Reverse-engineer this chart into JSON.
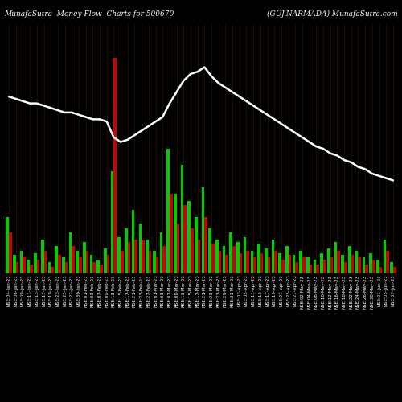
{
  "title_left": "MunafaSutra  Money Flow  Charts for 500670",
  "title_right": "(GUJ.NARMADA) MunafaSutra.com",
  "background_color": "#000000",
  "n_bars": 56,
  "xlabel_fontsize": 4.0,
  "title_fontsize": 6.5,
  "line_color": "#ffffff",
  "green_heights": [
    2.5,
    0.8,
    1.0,
    0.6,
    0.9,
    1.5,
    0.5,
    1.2,
    0.7,
    1.8,
    1.0,
    1.4,
    0.8,
    0.6,
    1.1,
    4.5,
    1.6,
    2.0,
    2.8,
    2.2,
    1.5,
    1.0,
    1.8,
    5.5,
    3.5,
    4.8,
    3.2,
    2.5,
    3.8,
    2.0,
    1.5,
    1.2,
    1.8,
    1.4,
    1.6,
    1.0,
    1.3,
    1.1,
    1.5,
    0.9,
    1.2,
    0.8,
    1.0,
    0.7,
    0.6,
    0.9,
    1.1,
    1.4,
    0.8,
    1.2,
    1.0,
    0.7,
    0.9,
    0.6,
    1.5,
    0.5
  ],
  "red_heights": [
    1.8,
    0.5,
    0.7,
    0.4,
    0.6,
    1.0,
    0.3,
    0.8,
    0.5,
    1.2,
    0.7,
    1.0,
    0.5,
    0.4,
    0.8,
    9.5,
    1.0,
    1.4,
    1.5,
    1.5,
    1.0,
    0.7,
    1.2,
    3.5,
    2.2,
    3.0,
    2.0,
    1.5,
    2.5,
    1.3,
    1.0,
    0.8,
    1.2,
    0.9,
    1.0,
    0.7,
    0.9,
    0.7,
    1.0,
    0.6,
    0.8,
    0.5,
    0.7,
    0.4,
    0.4,
    0.6,
    0.7,
    1.0,
    0.5,
    0.8,
    0.7,
    0.4,
    0.6,
    0.3,
    1.0,
    0.3
  ],
  "line_values": [
    7.8,
    7.7,
    7.6,
    7.5,
    7.5,
    7.4,
    7.3,
    7.2,
    7.1,
    7.1,
    7.0,
    6.9,
    6.8,
    6.8,
    6.7,
    6.0,
    5.8,
    5.9,
    6.1,
    6.3,
    6.5,
    6.7,
    6.9,
    7.5,
    8.0,
    8.5,
    8.8,
    8.9,
    9.1,
    8.7,
    8.4,
    8.2,
    8.0,
    7.8,
    7.6,
    7.4,
    7.2,
    7.0,
    6.8,
    6.6,
    6.4,
    6.2,
    6.0,
    5.8,
    5.6,
    5.5,
    5.3,
    5.2,
    5.0,
    4.9,
    4.7,
    4.6,
    4.4,
    4.3,
    4.2,
    4.1
  ],
  "x_labels": [
    "NSE:04-Jan-23",
    "NSE:06-Jan-23",
    "NSE:09-Jan-23",
    "NSE:11-Jan-23",
    "NSE:13-Jan-23",
    "NSE:17-Jan-23",
    "NSE:19-Jan-23",
    "NSE:23-Jan-23",
    "NSE:25-Jan-23",
    "NSE:27-Jan-23",
    "NSE:30-Jan-23",
    "NSE:01-Feb-23",
    "NSE:03-Feb-23",
    "NSE:07-Feb-23",
    "NSE:09-Feb-23",
    "NSE:13-Feb-23",
    "NSE:15-Feb-23",
    "NSE:17-Feb-23",
    "NSE:21-Feb-23",
    "NSE:23-Feb-23",
    "NSE:27-Feb-23",
    "NSE:01-Mar-23",
    "NSE:03-Mar-23",
    "NSE:07-Mar-23",
    "NSE:09-Mar-23",
    "NSE:13-Mar-23",
    "NSE:15-Mar-23",
    "NSE:17-Mar-23",
    "NSE:21-Mar-23",
    "NSE:23-Mar-23",
    "NSE:27-Mar-23",
    "NSE:29-Mar-23",
    "NSE:31-Mar-23",
    "NSE:03-Apr-23",
    "NSE:05-Apr-23",
    "NSE:11-Apr-23",
    "NSE:13-Apr-23",
    "NSE:17-Apr-23",
    "NSE:19-Apr-23",
    "NSE:21-Apr-23",
    "NSE:25-Apr-23",
    "NSE:27-Apr-23",
    "NSE:02-May-23",
    "NSE:04-May-23",
    "NSE:08-May-23",
    "NSE:10-May-23",
    "NSE:12-May-23",
    "NSE:16-May-23",
    "NSE:18-May-23",
    "NSE:22-May-23",
    "NSE:24-May-23",
    "NSE:26-May-23",
    "NSE:30-May-23",
    "NSE:01-Jun-23",
    "NSE:05-Jun-23",
    "NSE:07-Jun-23"
  ],
  "ylim": [
    0,
    11
  ],
  "line_ylim_scale": 1.0,
  "vline_color": "#5a3000",
  "vline_alpha": 0.6
}
